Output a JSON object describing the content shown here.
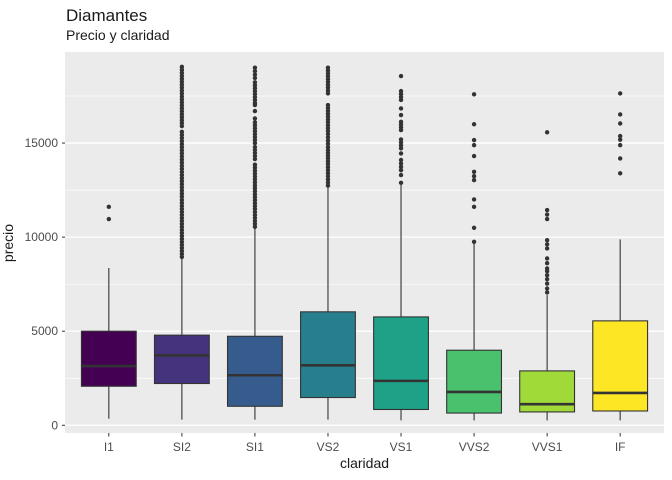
{
  "title": "Diamantes",
  "subtitle": "Precio y claridad",
  "chart_data": {
    "type": "boxplot",
    "title": "Diamantes",
    "subtitle": "Precio y claridad",
    "xlabel": "claridad",
    "ylabel": "precio",
    "categories": [
      "I1",
      "SI2",
      "SI1",
      "VS2",
      "VS1",
      "VVS2",
      "VVS1",
      "IF"
    ],
    "y_ticks": [
      0,
      5000,
      10000,
      15000
    ],
    "y_tick_labels": [
      "0",
      "5000",
      "10000",
      "15000"
    ],
    "y_minor_ticks": [
      2500,
      7500,
      12500,
      17500
    ],
    "ylim": [
      -410,
      19840
    ],
    "grid": "on",
    "panel_bg": "#EBEBEB",
    "grid_color": "#FFFFFF",
    "outline_color": "#333333",
    "axis_text_color": "#4D4D4D",
    "series": [
      {
        "category": "I1",
        "color": "#440154",
        "whisker_low": 350,
        "q1": 2075,
        "median": 3150,
        "q3": 5000,
        "whisker_high": 8360,
        "outliers": [
          10960,
          11610
        ],
        "outlier_bands": []
      },
      {
        "category": "SI2",
        "color": "#46337E",
        "whisker_low": 300,
        "q1": 2220,
        "median": 3720,
        "q3": 4790,
        "whisker_high": 8880,
        "outliers": [],
        "outlier_bands": [
          {
            "from": 8950,
            "to": 11980,
            "n": 20
          },
          {
            "from": 12150,
            "to": 15600,
            "n": 22
          },
          {
            "from": 15900,
            "to": 19050,
            "n": 21
          }
        ]
      },
      {
        "category": "SI1",
        "color": "#365C8D",
        "whisker_low": 300,
        "q1": 1010,
        "median": 2660,
        "q3": 4730,
        "whisker_high": 10460,
        "outliers": [
          16310,
          16700,
          17020
        ],
        "outlier_bands": [
          {
            "from": 10550,
            "to": 13850,
            "n": 22
          },
          {
            "from": 14150,
            "to": 14790,
            "n": 5
          },
          {
            "from": 15000,
            "to": 16100,
            "n": 8
          },
          {
            "from": 17130,
            "to": 18230,
            "n": 8
          },
          {
            "from": 18460,
            "to": 19005,
            "n": 4
          }
        ]
      },
      {
        "category": "VS2",
        "color": "#277F8E",
        "whisker_low": 300,
        "q1": 1475,
        "median": 3190,
        "q3": 6030,
        "whisker_high": 12680,
        "outliers": [],
        "outlier_bands": [
          {
            "from": 12740,
            "to": 13720,
            "n": 7
          },
          {
            "from": 13880,
            "to": 14630,
            "n": 6
          },
          {
            "from": 14790,
            "to": 15480,
            "n": 5
          },
          {
            "from": 15640,
            "to": 17020,
            "n": 10
          },
          {
            "from": 17640,
            "to": 19005,
            "n": 10
          }
        ]
      },
      {
        "category": "VS1",
        "color": "#1FA187",
        "whisker_low": 260,
        "q1": 840,
        "median": 2360,
        "q3": 5760,
        "whisker_high": 12770,
        "outliers": [
          12890,
          13300,
          14450,
          16490,
          16840,
          18560
        ],
        "outlier_bands": [
          {
            "from": 13560,
            "to": 14100,
            "n": 4
          },
          {
            "from": 14720,
            "to": 15190,
            "n": 4
          },
          {
            "from": 15690,
            "to": 16130,
            "n": 4
          },
          {
            "from": 17290,
            "to": 17760,
            "n": 4
          }
        ]
      },
      {
        "category": "VVS2",
        "color": "#4AC16D",
        "whisker_low": 260,
        "q1": 650,
        "median": 1770,
        "q3": 3990,
        "whisker_high": 9660,
        "outliers": [
          9750,
          10495,
          11610,
          12005,
          13030,
          13240,
          13470,
          14310,
          14890,
          15160,
          16000,
          17590
        ],
        "outlier_bands": []
      },
      {
        "category": "VVS1",
        "color": "#A0DA39",
        "whisker_low": 260,
        "q1": 710,
        "median": 1120,
        "q3": 2890,
        "whisker_high": 6920,
        "outliers": [
          7060,
          7270,
          7535,
          7765,
          7980,
          8190,
          8335,
          8615,
          8865,
          9400,
          9620,
          9840,
          10960,
          11200,
          11440,
          15570
        ],
        "outlier_bands": []
      },
      {
        "category": "IF",
        "color": "#FDE725",
        "whisker_low": 260,
        "q1": 760,
        "median": 1720,
        "q3": 5550,
        "whisker_high": 9880,
        "outliers": [
          13390,
          14180,
          14890,
          15180,
          15370,
          16040,
          16520,
          17640
        ],
        "outlier_bands": []
      }
    ]
  }
}
